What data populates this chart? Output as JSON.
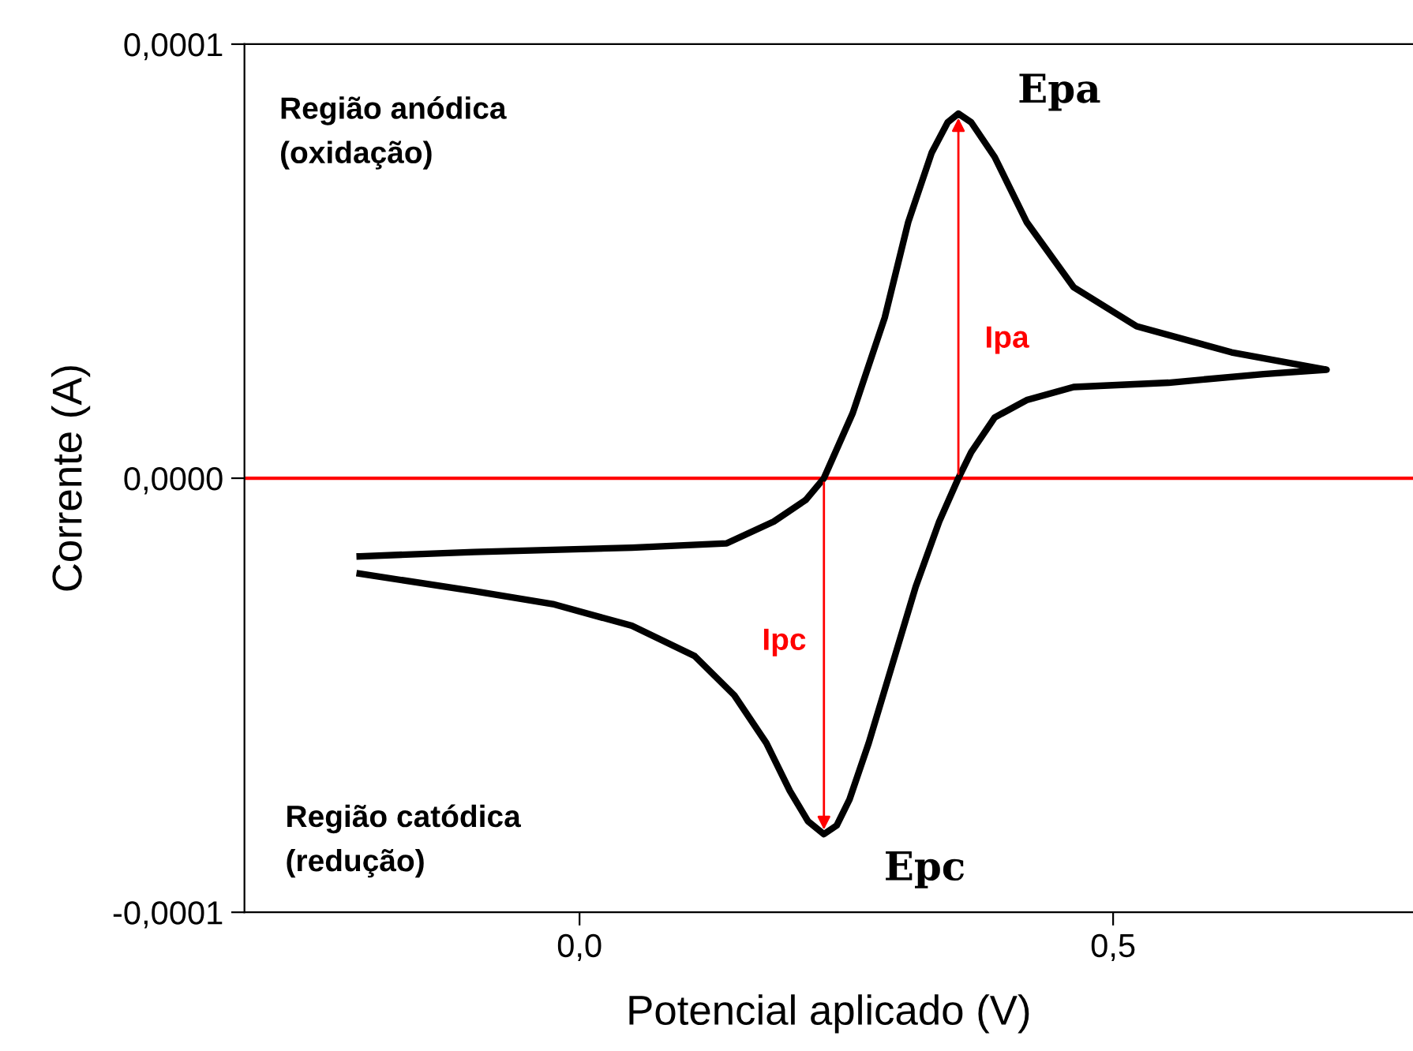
{
  "chart_data": {
    "type": "line",
    "xlabel": "Potencial aplicado (V)",
    "ylabel": "Corrente (A)",
    "x": [
      -0.206,
      -0.099,
      0.049,
      0.138,
      0.182,
      0.212,
      0.229,
      0.256,
      0.286,
      0.308,
      0.33,
      0.345,
      0.355,
      0.367,
      0.389,
      0.419,
      0.463,
      0.522,
      0.611,
      0.7,
      0.641,
      0.552,
      0.463,
      0.419,
      0.389,
      0.367,
      0.355,
      0.337,
      0.315,
      0.293,
      0.271,
      0.253,
      0.241,
      0.229,
      0.214,
      0.197,
      0.175,
      0.145,
      0.108,
      0.049,
      -0.025,
      -0.099,
      -0.206
    ],
    "series": [
      {
        "color": "#000000",
        "values": [
          -1.8e-05,
          -1.7e-05,
          -1.6e-05,
          -1.5e-05,
          -1e-05,
          -5e-06,
          0.0,
          1.5e-05,
          3.7e-05,
          5.9e-05,
          7.5e-05,
          8.2e-05,
          8.4e-05,
          8.2e-05,
          7.4e-05,
          5.9e-05,
          4.4e-05,
          3.5e-05,
          2.9e-05,
          2.5e-05,
          2.4e-05,
          2.2e-05,
          2.1e-05,
          1.8e-05,
          1.4e-05,
          6e-06,
          0.0,
          -1e-05,
          -2.5e-05,
          -4.3e-05,
          -6.1e-05,
          -7.4e-05,
          -8e-05,
          -8.2e-05,
          -7.9e-05,
          -7.2e-05,
          -6.1e-05,
          -5e-05,
          -4.1e-05,
          -3.4e-05,
          -2.9e-05,
          -2.6e-05,
          -2.2e-05
        ]
      }
    ],
    "xlim": [
      -0.314,
      0.781
    ],
    "ylim": [
      -0.0001,
      0.0001
    ],
    "xticks": [
      {
        "value": 0.0,
        "label": "0,0"
      },
      {
        "value": 0.5,
        "label": "0,5"
      }
    ],
    "yticks": [
      {
        "value": -0.0001,
        "label": "-0,0001"
      },
      {
        "value": 0.0,
        "label": "0,0000"
      },
      {
        "value": 0.0001,
        "label": "0,0001"
      }
    ],
    "ref_lines": [
      {
        "axis": "y",
        "value": 0.0,
        "color": "#ff0000"
      }
    ],
    "grid": false,
    "legend": false,
    "marker": "none",
    "line_style": "solid",
    "annotations": [
      "Região anódica\n(oxidação)",
      "Região catódica\n(redução)",
      {
        "text": "Epa",
        "x": 0.355,
        "y": 8.4e-05
      },
      {
        "text": "Epc",
        "x": 0.229,
        "y": -8.2e-05
      },
      "Ipa",
      "Ipc"
    ]
  }
}
